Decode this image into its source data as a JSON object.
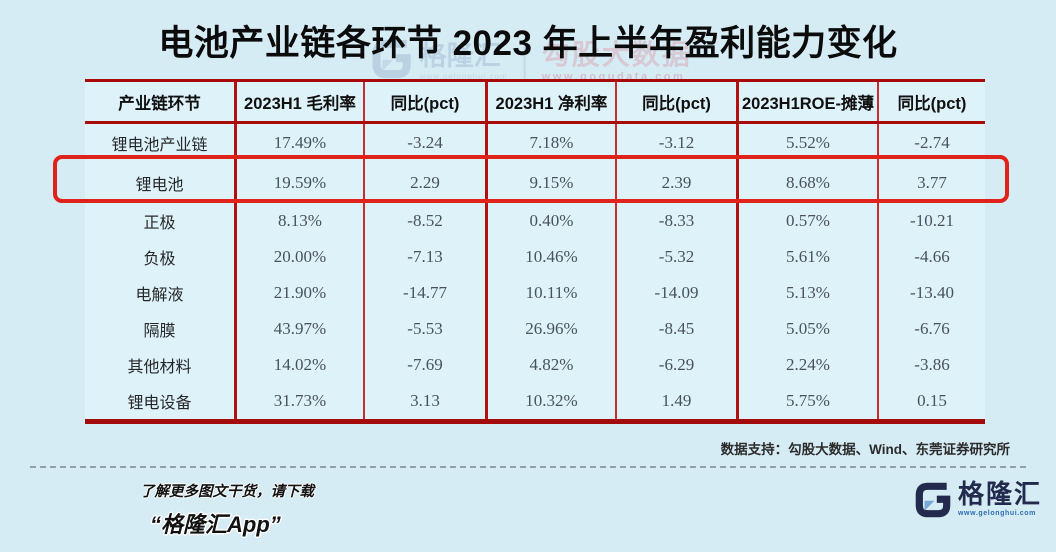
{
  "title": "电池产业链各环节 2023 年上半年盈利能力变化",
  "chart_data": {
    "type": "table",
    "title": "电池产业链各环节 2023 年上半年盈利能力变化",
    "columns": [
      "产业链环节",
      "2023H1 毛利率",
      "同比(pct)",
      "2023H1 净利率",
      "同比(pct)",
      "2023H1ROE-摊薄",
      "同比(pct)"
    ],
    "rows": [
      [
        "锂电池产业链",
        "17.49%",
        "-3.24",
        "7.18%",
        "-3.12",
        "5.52%",
        "-2.74"
      ],
      [
        "锂电池",
        "19.59%",
        "2.29",
        "9.15%",
        "2.39",
        "8.68%",
        "3.77"
      ],
      [
        "正极",
        "8.13%",
        "-8.52",
        "0.40%",
        "-8.33",
        "0.57%",
        "-10.21"
      ],
      [
        "负极",
        "20.00%",
        "-7.13",
        "10.46%",
        "-5.32",
        "5.61%",
        "-4.66"
      ],
      [
        "电解液",
        "21.90%",
        "-14.77",
        "10.11%",
        "-14.09",
        "5.13%",
        "-13.40"
      ],
      [
        "隔膜",
        "43.97%",
        "-5.53",
        "26.96%",
        "-8.45",
        "5.05%",
        "-6.76"
      ],
      [
        "其他材料",
        "14.02%",
        "-7.69",
        "4.82%",
        "-6.29",
        "2.24%",
        "-3.86"
      ],
      [
        "锂电设备",
        "31.73%",
        "3.13",
        "10.32%",
        "1.49",
        "5.75%",
        "0.15"
      ]
    ],
    "highlight_row_index": 1,
    "highlight_row_label": "锂电池"
  },
  "watermark": {
    "gelonghui_label": "格隆汇",
    "gelonghui_url": "www.gelonghui.com",
    "gogudata_label": "勾股大数据",
    "gogudata_url": "www.gogudata.com"
  },
  "source": "数据支持：勾股大数据、Wind、东莞证券研究所",
  "footer": {
    "promo_line1": "了解更多图文干货，请下载",
    "promo_line2": "“格隆汇App”",
    "logo_name": "格隆汇",
    "logo_url": "www.gelonghui.com"
  },
  "colors": {
    "page_bg": "#d6ecf5",
    "cell_bg": "#def2f9",
    "table_line_red": "#a90b0b",
    "column_line_red": "#b51010",
    "highlight_red": "#df221a",
    "logo_navy": "#222b4d",
    "logo_light_blue": "#78a8d8",
    "url_blue": "#2f6cb3"
  }
}
